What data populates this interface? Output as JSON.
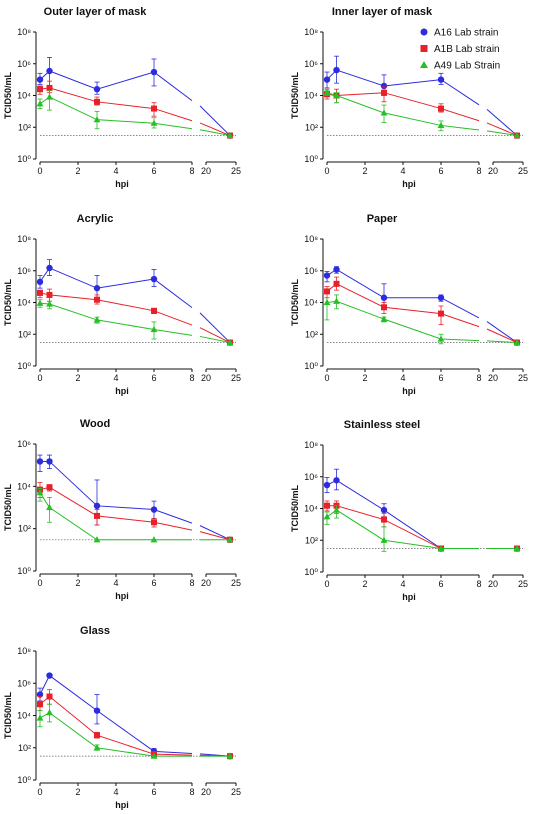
{
  "chart_data": [
    {
      "type": "line",
      "title": "Outer layer of mask",
      "ylabel": "TCID50/mL",
      "xlabel": "hpi",
      "log_y": true,
      "ylim": [
        1,
        100000000
      ],
      "xlim": [
        0,
        25
      ],
      "x_break": [
        8,
        20
      ],
      "y_ticks": [
        1,
        100,
        10000,
        1000000,
        100000000
      ],
      "x_ticks": [
        0,
        2,
        4,
        6,
        8,
        20,
        25
      ],
      "detection_limit": 30,
      "series": [
        {
          "name": "A16 Lab strain",
          "x": [
            0,
            0.5,
            3,
            6,
            24
          ],
          "y": [
            100000,
            350000,
            25000,
            300000,
            30
          ],
          "err_high": [
            250000,
            2500000,
            70000,
            2000000,
            null
          ],
          "err_low": [
            50000,
            40000,
            12000,
            40000,
            null
          ]
        },
        {
          "name": "A1B Lab strain",
          "x": [
            0,
            0.5,
            3,
            6,
            24
          ],
          "y": [
            25000,
            30000,
            4000,
            1500,
            30
          ],
          "err_high": [
            40000,
            80000,
            8000,
            3500,
            null
          ],
          "err_low": [
            12000,
            15000,
            2500,
            500,
            null
          ]
        },
        {
          "name": "A49 Lab Strain",
          "x": [
            0,
            0.5,
            3,
            6,
            24
          ],
          "y": [
            3000,
            8000,
            300,
            180,
            30
          ],
          "err_high": [
            6000,
            20000,
            1000,
            400,
            null
          ],
          "err_low": [
            1500,
            1200,
            80,
            90,
            null
          ]
        }
      ]
    },
    {
      "type": "line",
      "title": "Inner layer of mask",
      "ylabel": "TCID50/mL",
      "xlabel": "hpi",
      "log_y": true,
      "ylim": [
        1,
        100000000
      ],
      "xlim": [
        0,
        25
      ],
      "x_break": [
        8,
        20
      ],
      "y_ticks": [
        1,
        100,
        10000,
        1000000,
        100000000
      ],
      "x_ticks": [
        0,
        2,
        4,
        6,
        8,
        20,
        25
      ],
      "detection_limit": 30,
      "series": [
        {
          "name": "A16 Lab strain",
          "x": [
            0,
            0.5,
            3,
            6,
            24
          ],
          "y": [
            100000,
            400000,
            40000,
            100000,
            30
          ],
          "err_high": [
            300000,
            3000000,
            200000,
            250000,
            null
          ],
          "err_low": [
            30000,
            60000,
            10000,
            50000,
            null
          ]
        },
        {
          "name": "A1B Lab strain",
          "x": [
            0,
            0.5,
            3,
            6,
            24
          ],
          "y": [
            12000,
            10000,
            15000,
            1500,
            30
          ],
          "err_high": [
            25000,
            25000,
            35000,
            3000,
            null
          ],
          "err_low": [
            6000,
            3500,
            4000,
            900,
            null
          ]
        },
        {
          "name": "A49 Lab Strain",
          "x": [
            0,
            0.5,
            3,
            6,
            24
          ],
          "y": [
            15000,
            10000,
            800,
            130,
            30
          ],
          "err_high": [
            20000,
            15000,
            2500,
            250,
            null
          ],
          "err_low": [
            10000,
            3500,
            200,
            60,
            null
          ]
        }
      ]
    },
    {
      "type": "line",
      "title": "Acrylic",
      "ylabel": "TCID50/mL",
      "xlabel": "hpi",
      "log_y": true,
      "ylim": [
        1,
        100000000
      ],
      "xlim": [
        0,
        25
      ],
      "x_break": [
        8,
        20
      ],
      "y_ticks": [
        1,
        100,
        10000,
        1000000,
        100000000
      ],
      "x_ticks": [
        0,
        2,
        4,
        6,
        8,
        20,
        25
      ],
      "detection_limit": 30,
      "series": [
        {
          "name": "A16 Lab strain",
          "x": [
            0,
            0.5,
            3,
            6,
            24
          ],
          "y": [
            200000,
            1500000,
            80000,
            300000,
            30
          ],
          "err_high": [
            500000,
            5000000,
            500000,
            1200000,
            null
          ],
          "err_low": [
            80000,
            500000,
            20000,
            100000,
            null
          ]
        },
        {
          "name": "A1B Lab strain",
          "x": [
            0,
            0.5,
            3,
            6,
            24
          ],
          "y": [
            40000,
            30000,
            15000,
            3000,
            30
          ],
          "err_high": [
            60000,
            70000,
            30000,
            4000,
            null
          ],
          "err_low": [
            20000,
            12000,
            8000,
            2000,
            null
          ]
        },
        {
          "name": "A49 Lab Strain",
          "x": [
            0,
            0.5,
            3,
            6,
            24
          ],
          "y": [
            9000,
            8000,
            800,
            200,
            30
          ],
          "err_high": [
            15000,
            12000,
            1200,
            600,
            null
          ],
          "err_low": [
            5000,
            4000,
            500,
            50,
            null
          ]
        }
      ]
    },
    {
      "type": "line",
      "title": "Paper",
      "ylabel": "TCID50/mL",
      "xlabel": "hpi",
      "log_y": true,
      "ylim": [
        1,
        100000000
      ],
      "xlim": [
        0,
        25
      ],
      "x_break": [
        8,
        20
      ],
      "y_ticks": [
        1,
        100,
        10000,
        1000000,
        100000000
      ],
      "x_ticks": [
        0,
        2,
        4,
        6,
        8,
        20,
        25
      ],
      "detection_limit": 30,
      "series": [
        {
          "name": "A16 Lab strain",
          "x": [
            0,
            0.5,
            3,
            6,
            24
          ],
          "y": [
            500000,
            1200000,
            20000,
            20000,
            30
          ],
          "err_high": [
            900000,
            1800000,
            150000,
            30000,
            null
          ],
          "err_low": [
            200000,
            700000,
            4000,
            12000,
            null
          ]
        },
        {
          "name": "A1B Lab strain",
          "x": [
            0,
            0.5,
            3,
            6,
            24
          ],
          "y": [
            50000,
            150000,
            5000,
            2000,
            30
          ],
          "err_high": [
            100000,
            400000,
            10000,
            6000,
            null
          ],
          "err_low": [
            20000,
            60000,
            2000,
            400,
            null
          ]
        },
        {
          "name": "A49 Lab Strain",
          "x": [
            0,
            0.5,
            3,
            6,
            24
          ],
          "y": [
            10000,
            12000,
            900,
            50,
            30
          ],
          "err_high": [
            20000,
            30000,
            1200,
            100,
            null
          ],
          "err_low": [
            800,
            4000,
            600,
            25,
            null
          ]
        }
      ]
    },
    {
      "type": "line",
      "title": "Wood",
      "ylabel": "TCID50/mL",
      "xlabel": "hpi",
      "log_y": true,
      "ylim": [
        1,
        1000000
      ],
      "xlim": [
        0,
        25
      ],
      "x_break": [
        8,
        20
      ],
      "y_ticks": [
        1,
        100,
        10000,
        1000000
      ],
      "x_ticks": [
        0,
        2,
        4,
        6,
        8,
        20,
        25
      ],
      "detection_limit": 30,
      "series": [
        {
          "name": "A16 Lab strain",
          "x": [
            0,
            0.5,
            3,
            6,
            24
          ],
          "y": [
            150000,
            150000,
            1200,
            800,
            30
          ],
          "err_high": [
            300000,
            300000,
            20000,
            2000,
            null
          ],
          "err_low": [
            50000,
            70000,
            150,
            300,
            null
          ]
        },
        {
          "name": "A1B Lab strain",
          "x": [
            0,
            0.5,
            3,
            6,
            24
          ],
          "y": [
            7000,
            9000,
            400,
            200,
            30
          ],
          "err_high": [
            15000,
            12000,
            800,
            300,
            null
          ],
          "err_low": [
            3000,
            6000,
            150,
            120,
            null
          ]
        },
        {
          "name": "A49 Lab Strain",
          "x": [
            0,
            0.5,
            3,
            6,
            24
          ],
          "y": [
            5000,
            1000,
            30,
            30,
            30
          ],
          "err_high": [
            8000,
            3000,
            null,
            null,
            null
          ],
          "err_low": [
            2000,
            200,
            null,
            null,
            null
          ]
        }
      ]
    },
    {
      "type": "line",
      "title": "Stainless steel",
      "ylabel": "TCID50/mL",
      "xlabel": "hpi",
      "log_y": true,
      "ylim": [
        1,
        100000000
      ],
      "xlim": [
        0,
        25
      ],
      "x_break": [
        8,
        20
      ],
      "y_ticks": [
        1,
        100,
        10000,
        1000000,
        100000000
      ],
      "x_ticks": [
        0,
        2,
        4,
        6,
        8,
        20,
        25
      ],
      "detection_limit": 30,
      "series": [
        {
          "name": "A16 Lab strain",
          "x": [
            0,
            0.5,
            3,
            6,
            24
          ],
          "y": [
            300000,
            600000,
            8000,
            30,
            30
          ],
          "err_high": [
            900000,
            3000000,
            20000,
            null,
            null
          ],
          "err_low": [
            100000,
            150000,
            3000,
            null,
            null
          ]
        },
        {
          "name": "A1B Lab strain",
          "x": [
            0,
            0.5,
            3,
            6,
            24
          ],
          "y": [
            15000,
            15000,
            2000,
            30,
            30
          ],
          "err_high": [
            30000,
            30000,
            5000,
            null,
            null
          ],
          "err_low": [
            7000,
            5000,
            700,
            null,
            null
          ]
        },
        {
          "name": "A49 Lab Strain",
          "x": [
            0,
            0.5,
            3,
            6,
            24
          ],
          "y": [
            3000,
            8000,
            100,
            30,
            30
          ],
          "err_high": [
            6000,
            15000,
            700,
            null,
            null
          ],
          "err_low": [
            1000,
            2500,
            20,
            null,
            null
          ]
        }
      ]
    },
    {
      "type": "line",
      "title": "Glass",
      "ylabel": "TCID50/mL",
      "xlabel": "hpi",
      "log_y": true,
      "ylim": [
        1,
        100000000
      ],
      "xlim": [
        0,
        25
      ],
      "x_break": [
        8,
        20
      ],
      "y_ticks": [
        1,
        100,
        10000,
        1000000,
        100000000
      ],
      "x_ticks": [
        0,
        2,
        4,
        6,
        8,
        20,
        25
      ],
      "detection_limit": 30,
      "series": [
        {
          "name": "A16 Lab strain",
          "x": [
            0,
            0.5,
            3,
            6,
            24
          ],
          "y": [
            200000,
            3000000,
            20000,
            60,
            30
          ],
          "err_high": [
            500000,
            null,
            200000,
            90,
            null
          ],
          "err_low": [
            80000,
            null,
            3000,
            40,
            null
          ]
        },
        {
          "name": "A1B Lab strain",
          "x": [
            0,
            0.5,
            3,
            6,
            24
          ],
          "y": [
            50000,
            150000,
            600,
            40,
            30
          ],
          "err_high": [
            150000,
            400000,
            900,
            60,
            null
          ],
          "err_low": [
            20000,
            50000,
            400,
            30,
            null
          ]
        },
        {
          "name": "A49 Lab Strain",
          "x": [
            0,
            0.5,
            3,
            6,
            24
          ],
          "y": [
            7000,
            15000,
            100,
            30,
            30
          ],
          "err_high": [
            20000,
            50000,
            150,
            null,
            null
          ],
          "err_low": [
            2000,
            4000,
            70,
            null,
            null
          ]
        }
      ]
    }
  ],
  "legend": {
    "placement": "top-right of 'Inner layer of mask' panel",
    "items": [
      {
        "label": "A16 Lab strain",
        "color": "#2B2BE0",
        "marker": "circle"
      },
      {
        "label": "A1B Lab strain",
        "color": "#E8202A",
        "marker": "square"
      },
      {
        "label": "A49 Lab Strain",
        "color": "#26C026",
        "marker": "triangle"
      }
    ]
  },
  "colors": {
    "A16 Lab strain": "#2B2BE0",
    "A1B Lab strain": "#E8202A",
    "A49 Lab Strain": "#26C026",
    "limit_line": "#777777"
  }
}
